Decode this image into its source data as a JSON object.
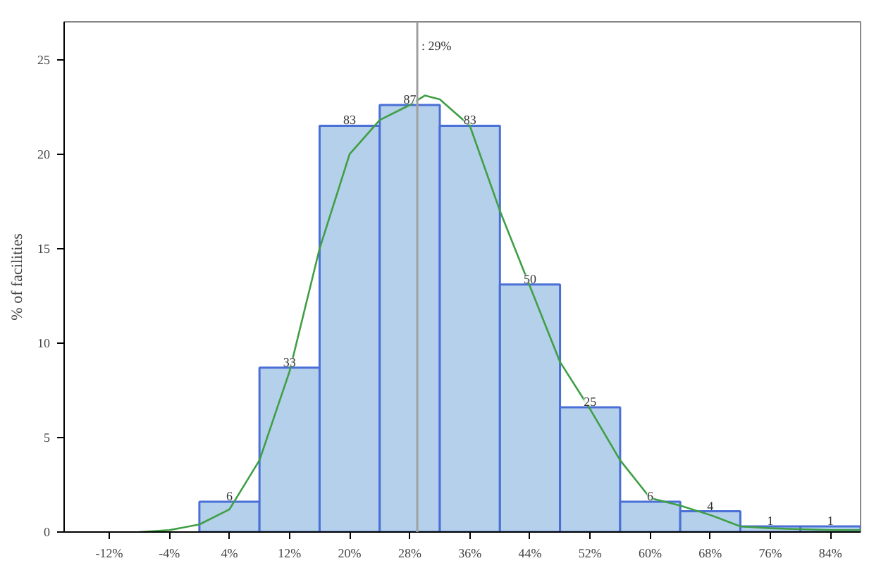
{
  "chart_data": {
    "type": "histogram",
    "ylabel": "% of facilities",
    "bins": [
      0,
      8,
      16,
      24,
      32,
      40,
      48,
      56,
      64,
      72,
      80,
      88
    ],
    "values": [
      1.6,
      8.7,
      21.5,
      22.6,
      21.5,
      13.1,
      6.6,
      1.6,
      1.1,
      0.3,
      0.3
    ],
    "annotations": [
      {
        "text": "6",
        "x": 4,
        "y": 1.6
      },
      {
        "text": "33",
        "x": 12,
        "y": 8.7
      },
      {
        "text": "83",
        "x": 20,
        "y": 21.5
      },
      {
        "text": "87",
        "x": 28,
        "y": 22.6
      },
      {
        "text": "83",
        "x": 36,
        "y": 21.5
      },
      {
        "text": "50",
        "x": 44,
        "y": 13.1
      },
      {
        "text": "25",
        "x": 52,
        "y": 6.6
      },
      {
        "text": "6",
        "x": 60,
        "y": 1.6
      },
      {
        "text": "4",
        "x": 68,
        "y": 1.1
      },
      {
        "text": "1",
        "x": 76,
        "y": 0.3
      },
      {
        "text": "1",
        "x": 84,
        "y": 0.3
      }
    ],
    "color": "#b5d0ea",
    "series": [
      {
        "type": "line",
        "color": "#3f9f45",
        "x": [
          -8,
          -4,
          0,
          4,
          8,
          12,
          16,
          20,
          24,
          28,
          30,
          32,
          36,
          40,
          44,
          48,
          52,
          56,
          60,
          64,
          68,
          72,
          76,
          80,
          84,
          88
        ],
        "values": [
          0,
          0.1,
          0.4,
          1.2,
          3.8,
          8.5,
          15,
          20,
          21.8,
          22.6,
          23.1,
          22.9,
          21.5,
          17,
          13,
          9,
          6.5,
          3.8,
          1.8,
          1.4,
          0.9,
          0.3,
          0.2,
          0.15,
          0.1,
          0.1
        ]
      }
    ],
    "ref_lines": [
      {
        "axis": "x",
        "value": 29,
        "label": ": 29%",
        "color": "#a0a0a0"
      }
    ],
    "xlim": [
      -18,
      88
    ],
    "ylim": [
      0,
      27
    ],
    "xticks": [
      {
        "value": -12,
        "label": "-12%"
      },
      {
        "value": -4,
        "label": "-4%"
      },
      {
        "value": 4,
        "label": "4%"
      },
      {
        "value": 12,
        "label": "12%"
      },
      {
        "value": 20,
        "label": "20%"
      },
      {
        "value": 28,
        "label": "28%"
      },
      {
        "value": 36,
        "label": "36%"
      },
      {
        "value": 44,
        "label": "44%"
      },
      {
        "value": 52,
        "label": "52%"
      },
      {
        "value": 60,
        "label": "60%"
      },
      {
        "value": 68,
        "label": "68%"
      },
      {
        "value": 76,
        "label": "76%"
      },
      {
        "value": 84,
        "label": "84%"
      }
    ],
    "yticks": [
      0,
      5,
      10,
      15,
      20,
      25
    ],
    "grid": false
  }
}
